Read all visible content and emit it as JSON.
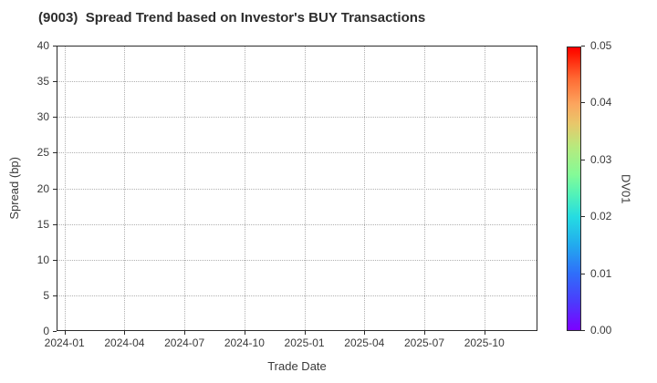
{
  "chart_data": {
    "type": "scatter",
    "title": "(9003)  Spread Trend based on Investor's BUY Transactions",
    "xlabel": "Trade Date",
    "ylabel": "Spread (bp)",
    "x_tick_labels": [
      "2024-01",
      "2024-04",
      "2024-07",
      "2024-10",
      "2025-01",
      "2025-04",
      "2025-07",
      "2025-10"
    ],
    "y_ticks": [
      0,
      5,
      10,
      15,
      20,
      25,
      30,
      35,
      40
    ],
    "ylim": [
      0,
      40
    ],
    "grid": true,
    "legend_position": "none",
    "points": [],
    "colorbar": {
      "label": "DV01",
      "tick_labels": [
        "0.00",
        "0.01",
        "0.02",
        "0.03",
        "0.04",
        "0.05"
      ],
      "range": [
        0.0,
        0.05
      ],
      "colormap": "rainbow"
    }
  },
  "colors": {
    "background": "#ffffff",
    "text": "#3a3a3a",
    "title_text": "#2d2d2d",
    "spine": "#2b2b2b",
    "grid": "#b1b1b1",
    "colorbar_bottom": "#7c00ff",
    "colorbar_top": "#ff0000"
  }
}
